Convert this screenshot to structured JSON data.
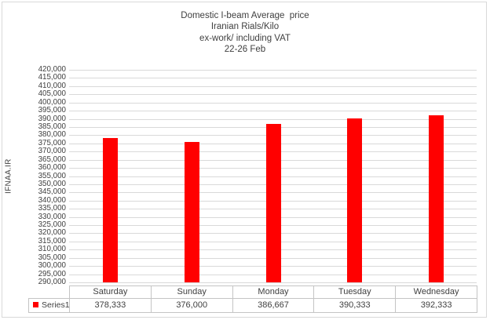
{
  "chart_data": {
    "type": "bar",
    "title_lines": [
      "Domestic I-beam Average  price",
      "Iranian Rials/Kilo",
      "ex-work/ including VAT",
      "22-26 Feb"
    ],
    "categories": [
      "Saturday",
      "Sunday",
      "Monday",
      "Tuesday",
      "Wednesday"
    ],
    "series": [
      {
        "name": "Series1",
        "color": "#FF0000",
        "values": [
          378333,
          376000,
          386667,
          390333,
          392333
        ]
      }
    ],
    "value_labels": [
      "378,333",
      "376,000",
      "386,667",
      "390,333",
      "392,333"
    ],
    "xlabel": "",
    "ylabel": "IFNAA.IR",
    "ylim": [
      290000,
      420000
    ],
    "ytick_step": 5000,
    "ytick_labels": [
      "420,000",
      "415,000",
      "410,000",
      "405,000",
      "400,000",
      "395,000",
      "390,000",
      "385,000",
      "380,000",
      "375,000",
      "370,000",
      "365,000",
      "360,000",
      "355,000",
      "350,000",
      "345,000",
      "340,000",
      "335,000",
      "330,000",
      "325,000",
      "320,000",
      "315,000",
      "310,000",
      "305,000",
      "300,000",
      "295,000",
      "290,000"
    ],
    "grid": true,
    "legend": {
      "label": "Series1",
      "marker_color": "#FF0000",
      "position": "bottom-left-data-table"
    },
    "data_table_shown": true
  },
  "colors": {
    "bar": "#FF0000",
    "gridline": "#D9D9D9",
    "table_border": "#C4C4C4",
    "text": "#3F3F3F",
    "chart_border": "#D9D9D9",
    "background": "#FFFFFF"
  }
}
